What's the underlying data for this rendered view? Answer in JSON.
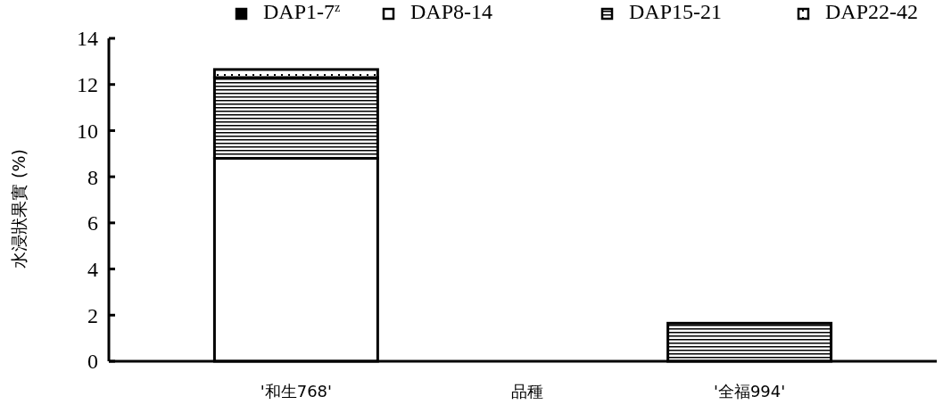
{
  "chart_data": {
    "type": "bar",
    "stacked": true,
    "categories": [
      "'和生768'",
      "'全福994'"
    ],
    "xlabel": "品種",
    "ylabel": "水浸狀果實 (%)",
    "ylim": [
      0,
      14
    ],
    "yticks": [
      0,
      2,
      4,
      6,
      8,
      10,
      12,
      14
    ],
    "legend": "top right",
    "grid": false,
    "series": [
      {
        "name": "DAP1-7$^{z}$",
        "color": "#000000",
        "values": [
          0,
          0
        ]
      },
      {
        "name": "DAP8-14",
        "color": "#ffffff",
        "values": [
          8.8,
          0
        ]
      },
      {
        "name": "DAP15-21",
        "color": "#000000",
        "values": [
          3.5,
          1.65
        ]
      },
      {
        "name": "DAP22-42",
        "color": "#000000",
        "values": [
          0.35,
          0
        ]
      }
    ]
  }
}
